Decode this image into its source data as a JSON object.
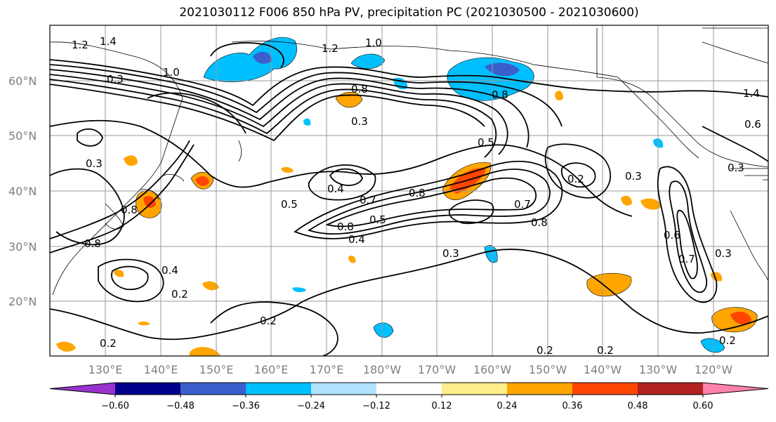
{
  "title": "2021030112 F006 850 hPa PV, precipitation PC (2021030500 - 2021030600)",
  "lat_labels": [
    "60°N",
    "50°N",
    "40°N",
    "30°N",
    "20°N"
  ],
  "lon_labels": [
    "130°E",
    "140°E",
    "150°E",
    "160°E",
    "170°E",
    "180°W",
    "170°W",
    "160°W",
    "150°W",
    "140°W",
    "130°W",
    "120°W"
  ],
  "contour_labels": [
    "1.2",
    "1.4",
    "1.0",
    "1.2",
    "0.5",
    "0.3",
    "0.8",
    "0.3",
    "0.8",
    "1.0",
    "1.4",
    "0.6",
    "0.3",
    "0.5",
    "0.4",
    "0.7",
    "0.8",
    "0.7",
    "0.8",
    "0.4",
    "0.5",
    "0.8",
    "0.3",
    "0.2",
    "0.3",
    "0.6",
    "0.7",
    "0.3",
    "0.8",
    "0.4",
    "0.2",
    "0.2",
    "0.2",
    "0.2",
    "0.2",
    "0.2",
    "0.8",
    "0.3"
  ],
  "colorbar": {
    "ticks": [
      "−0.60",
      "−0.48",
      "−0.36",
      "−0.24",
      "−0.12",
      "0.12",
      "0.24",
      "0.36",
      "0.48",
      "0.60"
    ],
    "colors": [
      "#9932cc",
      "#00008b",
      "#3a5fcd",
      "#00bfff",
      "#b0e2ff",
      "#ffffff",
      "#ffec8b",
      "#ffa500",
      "#ff4500",
      "#b22222",
      "#ff82ab"
    ]
  },
  "legend_colors": {
    "negative_strong": "#00bfff",
    "negative_medium": "#3a5fcd",
    "negative_weak": "#b0e2ff",
    "positive_weak": "#ffec8b",
    "positive_medium": "#ffa500",
    "positive_strong": "#ff4500",
    "positive_very_strong": "#b22222"
  }
}
